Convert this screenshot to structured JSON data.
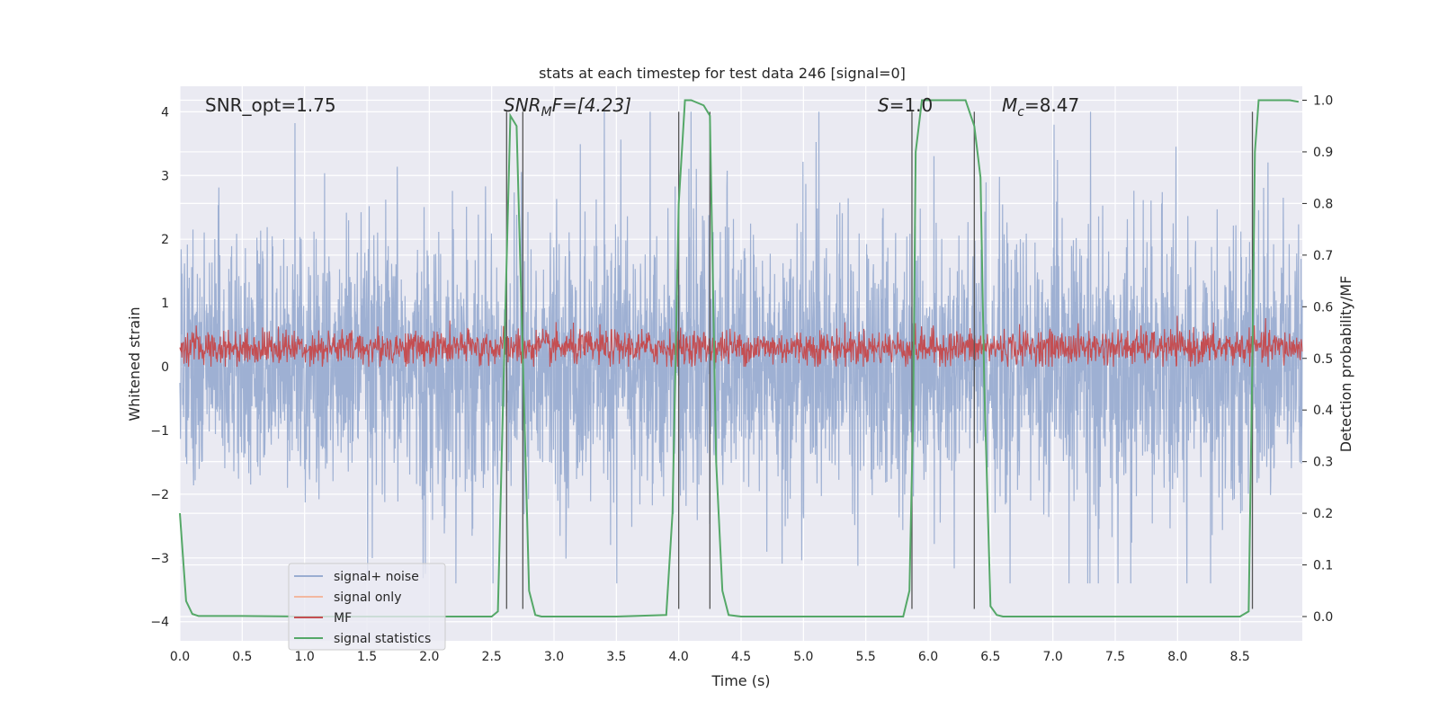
{
  "chart_data": {
    "type": "line",
    "title": "stats at each timestep for test data 246 [signal=0]",
    "xlabel": "Time (s)",
    "ylabel_left": "Whitened strain",
    "ylabel_right": "Detection probability/MF",
    "xlim": [
      0.0,
      9.0
    ],
    "ylim_left": [
      -4.3,
      4.4
    ],
    "ylim_right": [
      -0.047,
      1.027
    ],
    "x_ticks": [
      "0.0",
      "0.5",
      "1.0",
      "1.5",
      "2.0",
      "2.5",
      "3.0",
      "3.5",
      "4.0",
      "4.5",
      "5.0",
      "5.5",
      "6.0",
      "6.5",
      "7.0",
      "7.5",
      "8.0",
      "8.5"
    ],
    "y_ticks_left": [
      "4",
      "3",
      "2",
      "1",
      "0",
      "−1",
      "−2",
      "−3",
      "−4"
    ],
    "y_ticks_right": [
      "1.0",
      "0.9",
      "0.8",
      "0.7",
      "0.6",
      "0.5",
      "0.4",
      "0.3",
      "0.2",
      "0.1",
      "0.0"
    ],
    "annotations": {
      "snr_opt": "SNR_opt=1.75",
      "snr_mf_base": "SNR",
      "snr_mf_sub": "M",
      "snr_mf_rest": "F=[4.23]",
      "s_label": "S",
      "s_value": "=1.0",
      "mc_base": "M",
      "mc_sub": "c",
      "mc_value": "=8.47"
    },
    "legend": {
      "position": "lower-left",
      "items": [
        {
          "label": "signal+ noise",
          "color": "#9aadd1"
        },
        {
          "label": "signal only",
          "color": "#f2b8a0"
        },
        {
          "label": "MF",
          "color": "#c44e52"
        },
        {
          "label": "signal statistics",
          "color": "#55a868"
        }
      ]
    },
    "series": [
      {
        "name": "signal statistics",
        "axis": "right",
        "x": [
          0.0,
          0.05,
          0.1,
          0.15,
          0.5,
          1.0,
          1.5,
          2.0,
          2.5,
          2.55,
          2.6,
          2.65,
          2.7,
          2.75,
          2.8,
          2.85,
          2.9,
          3.0,
          3.5,
          3.9,
          3.95,
          4.0,
          4.05,
          4.1,
          4.2,
          4.25,
          4.3,
          4.35,
          4.4,
          4.5,
          5.0,
          5.5,
          5.8,
          5.85,
          5.88,
          5.9,
          5.95,
          6.0,
          6.3,
          6.37,
          6.42,
          6.45,
          6.5,
          6.55,
          6.6,
          7.0,
          7.5,
          8.0,
          8.5,
          8.57,
          8.6,
          8.62,
          8.65,
          8.7,
          8.9,
          8.97
        ],
        "y": [
          0.2,
          0.03,
          0.005,
          0.001,
          0.001,
          0.0,
          0.0,
          0.0,
          0.0,
          0.01,
          0.5,
          0.97,
          0.95,
          0.5,
          0.05,
          0.003,
          0.0,
          0.0,
          0.0,
          0.003,
          0.2,
          0.8,
          1.0,
          1.0,
          0.99,
          0.97,
          0.3,
          0.05,
          0.003,
          0.0,
          0.0,
          0.0,
          0.0,
          0.05,
          0.4,
          0.9,
          1.0,
          1.0,
          1.0,
          0.95,
          0.85,
          0.45,
          0.02,
          0.003,
          0.0,
          0.0,
          0.0,
          0.0,
          0.0,
          0.01,
          0.5,
          0.9,
          1.0,
          1.0,
          1.0,
          0.997
        ]
      },
      {
        "name": "MF",
        "axis": "left",
        "description": "dense noisy band roughly between 0.0 and 0.8 whitened strain"
      },
      {
        "name": "signal+ noise",
        "axis": "left",
        "description": "dense noisy trace roughly between -3.4 and 4.0 whitened strain"
      }
    ],
    "vertical_markers": [
      2.62,
      2.75,
      4.0,
      4.25,
      5.87,
      6.37,
      8.6
    ]
  }
}
